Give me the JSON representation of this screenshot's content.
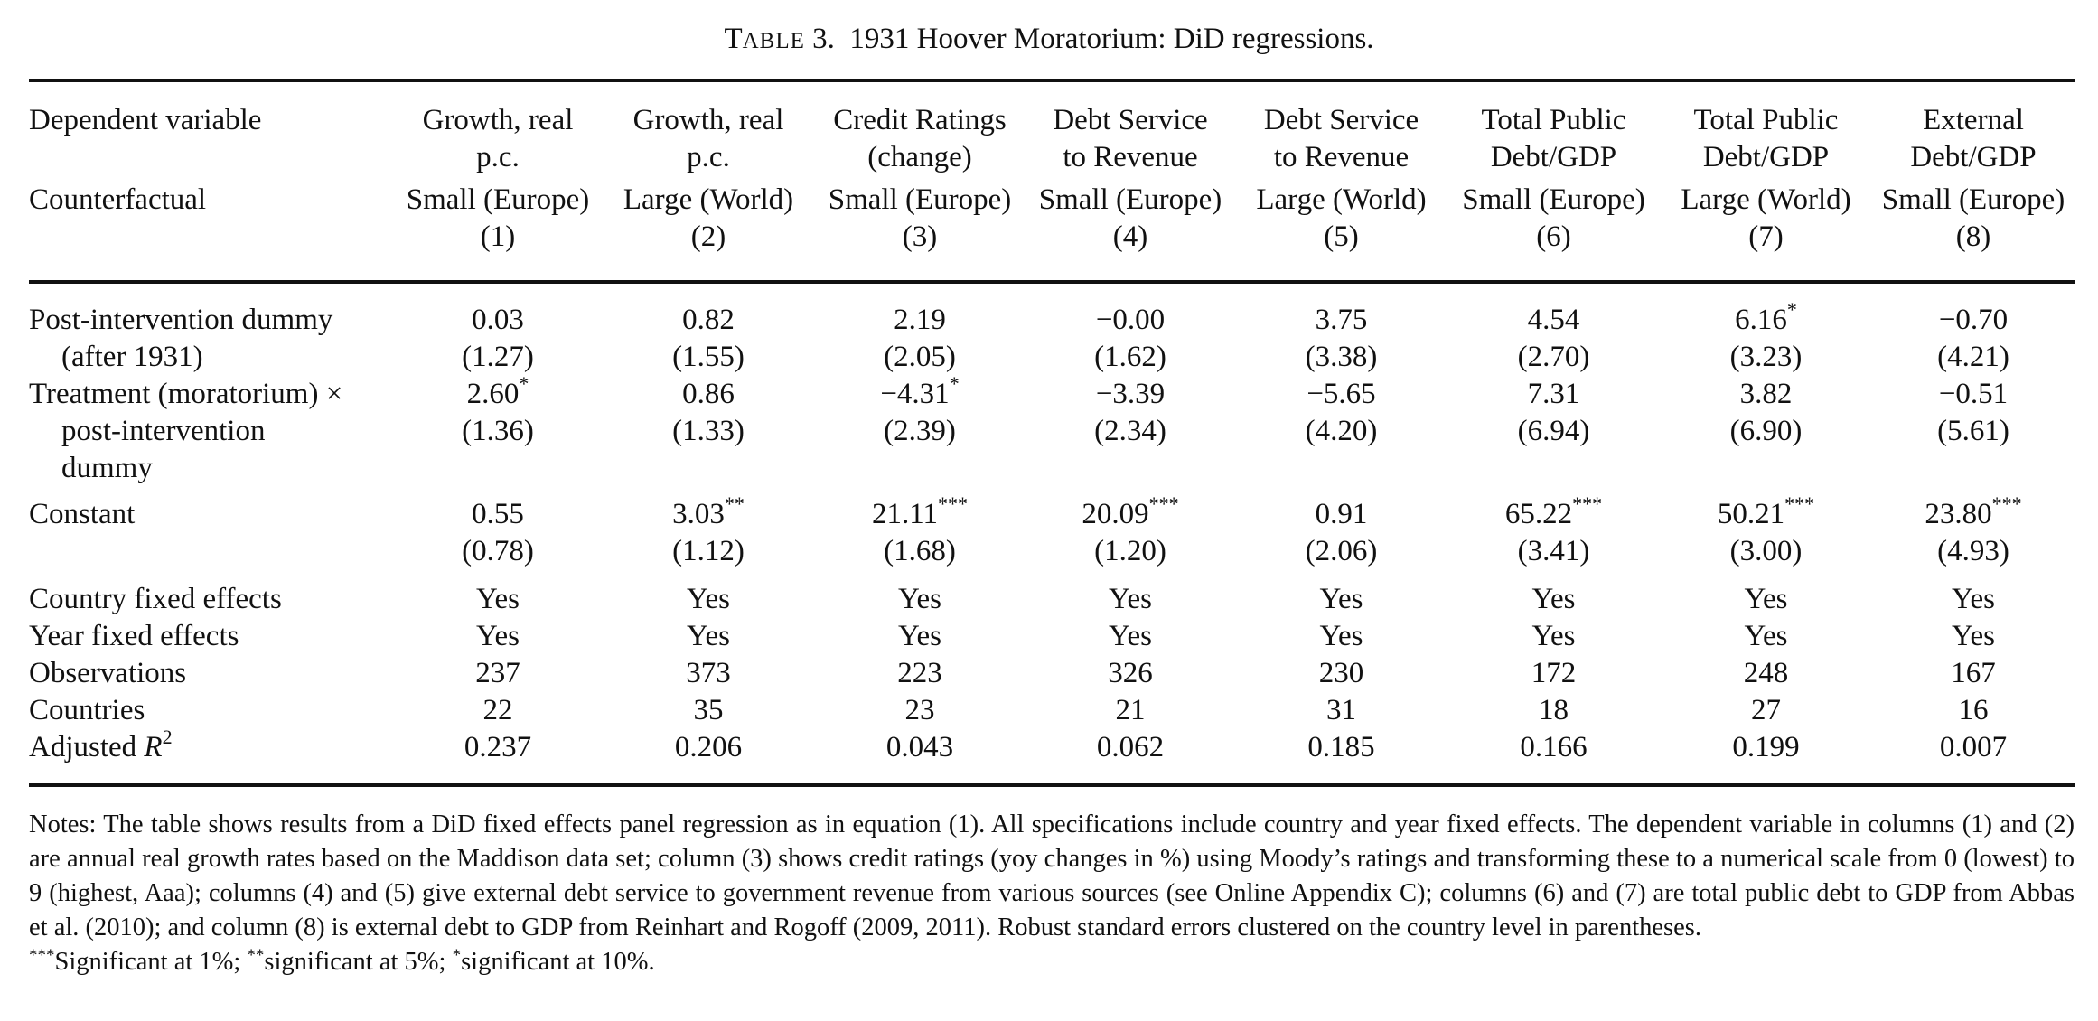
{
  "caption": {
    "table_word_first": "T",
    "table_word_rest": "ABLE",
    "table_number": "3.",
    "title": "1931 Hoover Moratorium: DiD regressions."
  },
  "header": {
    "dep_label": "Dependent variable",
    "cf_label": "Counterfactual",
    "columns": [
      {
        "dep_line1": "Growth, real",
        "dep_line2": "p.c.",
        "cf": "Small (Europe)",
        "num": "(1)"
      },
      {
        "dep_line1": "Growth, real",
        "dep_line2": "p.c.",
        "cf": "Large (World)",
        "num": "(2)"
      },
      {
        "dep_line1": "Credit Ratings",
        "dep_line2": "(change)",
        "cf": "Small (Europe)",
        "num": "(3)"
      },
      {
        "dep_line1": "Debt Service",
        "dep_line2": "to Revenue",
        "cf": "Small (Europe)",
        "num": "(4)"
      },
      {
        "dep_line1": "Debt Service",
        "dep_line2": "to Revenue",
        "cf": "Large (World)",
        "num": "(5)"
      },
      {
        "dep_line1": "Total Public",
        "dep_line2": "Debt/GDP",
        "cf": "Small (Europe)",
        "num": "(6)"
      },
      {
        "dep_line1": "Total Public",
        "dep_line2": "Debt/GDP",
        "cf": "Large (World)",
        "num": "(7)"
      },
      {
        "dep_line1": "External",
        "dep_line2": "Debt/GDP",
        "cf": "Small (Europe)",
        "num": "(8)"
      }
    ]
  },
  "rows": {
    "post": {
      "label1": "Post-intervention dummy",
      "label2": "(after 1931)",
      "coef": [
        "0.03",
        "0.82",
        "2.19",
        "−0.00",
        "3.75",
        "4.54",
        "6.16",
        "−0.70"
      ],
      "stars": [
        "",
        "",
        "",
        "",
        "",
        "",
        "*",
        ""
      ],
      "se": [
        "(1.27)",
        "(1.55)",
        "(2.05)",
        "(1.62)",
        "(3.38)",
        "(2.70)",
        "(3.23)",
        "(4.21)"
      ]
    },
    "treat": {
      "label1": "Treatment (moratorium) ×",
      "label2": "post-intervention",
      "label3": "dummy",
      "coef": [
        "2.60",
        "0.86",
        "−4.31",
        "−3.39",
        "−5.65",
        "7.31",
        "3.82",
        "−0.51"
      ],
      "stars": [
        "*",
        "",
        "*",
        "",
        "",
        "",
        "",
        ""
      ],
      "se": [
        "(1.36)",
        "(1.33)",
        "(2.39)",
        "(2.34)",
        "(4.20)",
        "(6.94)",
        "(6.90)",
        "(5.61)"
      ]
    },
    "const": {
      "label1": "Constant",
      "coef": [
        "0.55",
        "3.03",
        "21.11",
        "20.09",
        "0.91",
        "65.22",
        "50.21",
        "23.80"
      ],
      "stars": [
        "",
        "**",
        "***",
        "***",
        "",
        "***",
        "***",
        "***"
      ],
      "se": [
        "(0.78)",
        "(1.12)",
        "(1.68)",
        "(1.20)",
        "(2.06)",
        "(3.41)",
        "(3.00)",
        "(4.93)"
      ]
    },
    "stats": [
      {
        "label": "Country fixed effects",
        "values": [
          "Yes",
          "Yes",
          "Yes",
          "Yes",
          "Yes",
          "Yes",
          "Yes",
          "Yes"
        ]
      },
      {
        "label": "Year fixed effects",
        "values": [
          "Yes",
          "Yes",
          "Yes",
          "Yes",
          "Yes",
          "Yes",
          "Yes",
          "Yes"
        ]
      },
      {
        "label": "Observations",
        "values": [
          "237",
          "373",
          "223",
          "326",
          "230",
          "172",
          "248",
          "167"
        ]
      },
      {
        "label": "Countries",
        "values": [
          "22",
          "35",
          "23",
          "21",
          "31",
          "18",
          "27",
          "16"
        ]
      },
      {
        "label": "Adjusted",
        "label_var": "R",
        "label_sup": "2",
        "values": [
          "0.237",
          "0.206",
          "0.043",
          "0.062",
          "0.185",
          "0.166",
          "0.199",
          "0.007"
        ]
      }
    ]
  },
  "notes": {
    "text": "Notes: The table shows results from a DiD fixed effects panel regression as in equation (1). All specifications include country and year fixed effects. The dependent variable in columns (1) and (2) are annual real growth rates based on the Maddison data set; column (3) shows credit ratings (yoy changes in %) using Moody’s ratings and transforming these to a numerical scale from 0 (lowest) to 9 (highest, Aaa); columns (4) and (5) give external debt service to government revenue from various sources (see Online Appendix C); columns (6) and (7) are total public debt to GDP from Abbas et al. (2010); and column (8) is external debt to GDP from Reinhart and Rogoff (2009, 2011). Robust standard errors clustered on the country level in parentheses.",
    "sig1_mark": "***",
    "sig1_text": "Significant at 1%;",
    "sig2_mark": "**",
    "sig2_text": "significant at 5%;",
    "sig3_mark": "*",
    "sig3_text": "significant at 10%."
  }
}
